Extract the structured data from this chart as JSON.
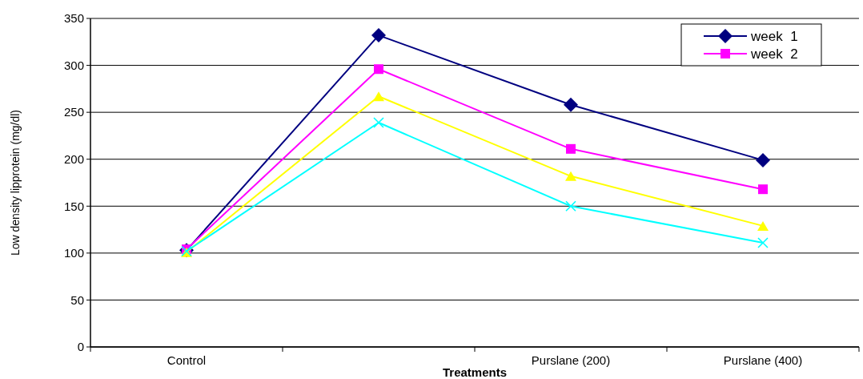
{
  "chart_data": {
    "type": "line",
    "xlabel": "Treatments",
    "ylabel": "Low density lipprotein (mg/dl)",
    "categories": [
      "Control",
      null,
      "Purslane (200)",
      "Purslane (400)"
    ],
    "series": [
      {
        "name": "week  1",
        "color": "#000080",
        "marker": "diamond",
        "values": [
          103,
          332,
          258,
          199
        ]
      },
      {
        "name": "week  2",
        "color": "#ff00ff",
        "marker": "square",
        "values": [
          104,
          296,
          211,
          168
        ]
      },
      {
        "color": "#ffff00",
        "marker": "triangle",
        "values": [
          101,
          267,
          182,
          129
        ]
      },
      {
        "color": "#00ffff",
        "marker": "cross",
        "values": [
          102,
          239,
          150,
          111
        ]
      }
    ],
    "ylim": [
      0,
      350
    ],
    "yticks": [
      0,
      50,
      100,
      150,
      200,
      250,
      300,
      350
    ],
    "grid": "y",
    "legend": "top right"
  }
}
